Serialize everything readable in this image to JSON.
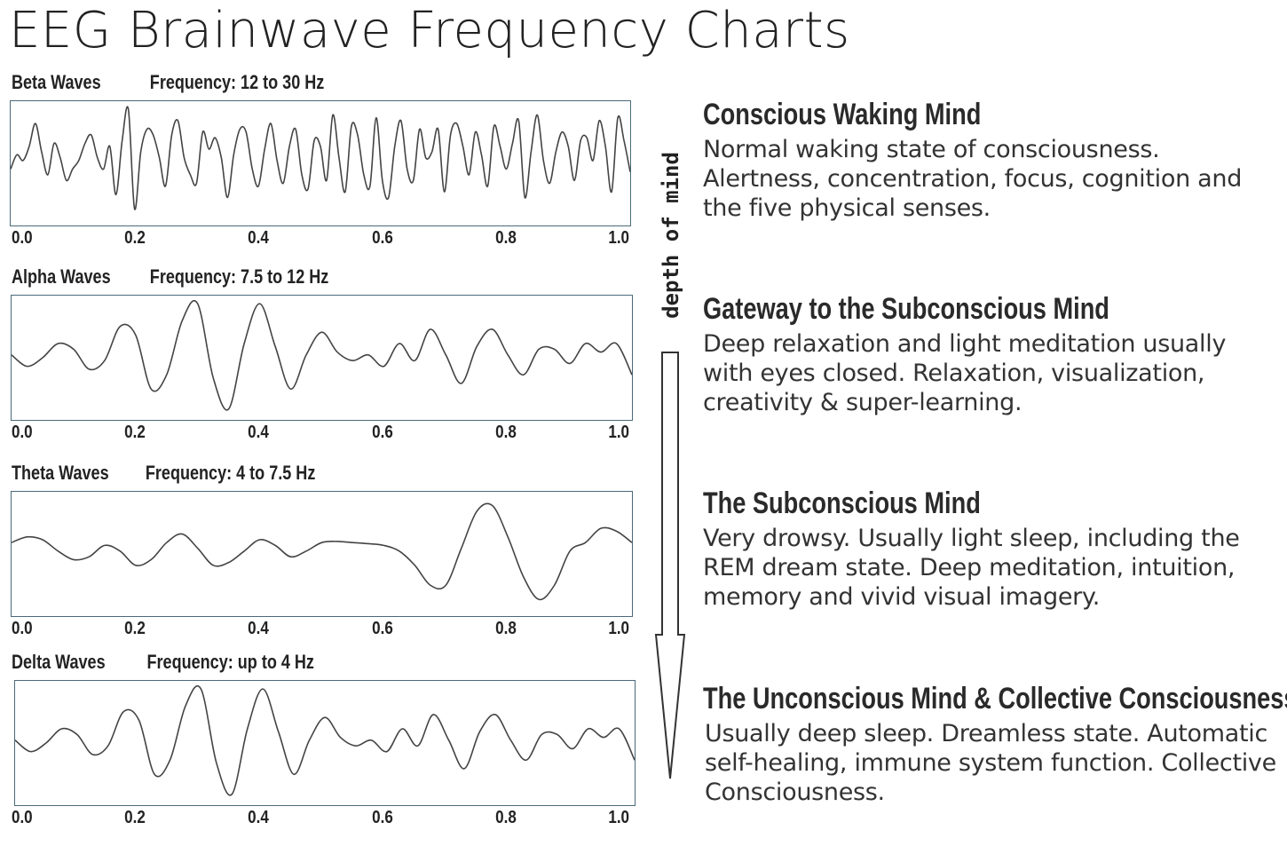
{
  "title": "EEG Brainwave Frequency Charts",
  "depth_label": "depth of mind",
  "chart_data": [
    {
      "type": "line",
      "name": "Beta Waves",
      "frequency_label": "Frequency: 12 to 30 Hz",
      "x_ticks": [
        "0.0",
        "0.2",
        "0.4",
        "0.6",
        "0.8",
        "1.0"
      ],
      "xlim": [
        0,
        1
      ],
      "ylim": [
        -1,
        1
      ],
      "x": [
        0.0,
        0.01,
        0.02,
        0.03,
        0.04,
        0.05,
        0.06,
        0.07,
        0.08,
        0.09,
        0.1,
        0.11,
        0.12,
        0.13,
        0.14,
        0.15,
        0.16,
        0.17,
        0.18,
        0.19,
        0.2,
        0.21,
        0.22,
        0.23,
        0.24,
        0.25,
        0.26,
        0.27,
        0.28,
        0.29,
        0.3,
        0.31,
        0.32,
        0.33,
        0.34,
        0.35,
        0.36,
        0.37,
        0.38,
        0.39,
        0.4,
        0.41,
        0.42,
        0.43,
        0.44,
        0.45,
        0.46,
        0.47,
        0.48,
        0.49,
        0.5,
        0.51,
        0.52,
        0.53,
        0.54,
        0.55,
        0.56,
        0.57,
        0.58,
        0.59,
        0.6,
        0.61,
        0.62,
        0.63,
        0.64,
        0.65,
        0.66,
        0.67,
        0.68,
        0.69,
        0.7,
        0.71,
        0.72,
        0.73,
        0.74,
        0.75,
        0.76,
        0.77,
        0.78,
        0.79,
        0.8,
        0.81,
        0.82,
        0.83,
        0.84,
        0.85,
        0.86,
        0.87,
        0.88,
        0.89,
        0.9,
        0.91,
        0.92,
        0.93,
        0.94,
        0.95,
        0.96,
        0.97,
        0.98,
        0.99,
        1.0
      ],
      "y": [
        -0.1,
        0.15,
        0.05,
        0.3,
        0.7,
        0.2,
        -0.2,
        0.35,
        0.1,
        -0.3,
        -0.1,
        0.05,
        0.35,
        0.5,
        0.1,
        -0.1,
        0.3,
        -0.55,
        0.4,
        0.95,
        -0.8,
        0.2,
        0.6,
        0.5,
        0.1,
        -0.4,
        0.5,
        0.75,
        0.1,
        -0.2,
        -0.35,
        0.55,
        0.25,
        0.45,
        0.1,
        -0.6,
        0.15,
        0.6,
        0.55,
        -0.1,
        -0.4,
        0.25,
        0.7,
        0.05,
        -0.35,
        0.3,
        0.6,
        -0.2,
        -0.45,
        0.4,
        0.3,
        -0.3,
        0.85,
        0.1,
        -0.5,
        0.65,
        0.5,
        -0.2,
        -0.4,
        0.8,
        -0.3,
        -0.6,
        0.3,
        0.75,
        -0.1,
        -0.3,
        0.6,
        0.1,
        0.2,
        0.6,
        -0.5,
        0.5,
        0.7,
        0.3,
        -0.2,
        0.55,
        0.15,
        -0.4,
        0.65,
        0.3,
        -0.1,
        0.35,
        0.75,
        -0.6,
        0.2,
        0.85,
        0.05,
        -0.35,
        0.2,
        0.55,
        0.3,
        -0.3,
        0.4,
        0.45,
        0.05,
        0.75,
        0.3,
        -0.5,
        0.8,
        0.4,
        -0.15
      ]
    },
    {
      "type": "line",
      "name": "Alpha Waves",
      "frequency_label": "Frequency: 7.5 to 12 Hz",
      "x_ticks": [
        "0.0",
        "0.2",
        "0.4",
        "0.6",
        "0.8",
        "1.0"
      ],
      "xlim": [
        0,
        1
      ],
      "ylim": [
        -1,
        1
      ],
      "x": [
        0.0,
        0.025,
        0.05,
        0.075,
        0.1,
        0.125,
        0.15,
        0.175,
        0.2,
        0.225,
        0.25,
        0.275,
        0.3,
        0.325,
        0.35,
        0.375,
        0.4,
        0.425,
        0.45,
        0.475,
        0.5,
        0.525,
        0.55,
        0.575,
        0.6,
        0.625,
        0.65,
        0.675,
        0.7,
        0.725,
        0.75,
        0.775,
        0.8,
        0.825,
        0.85,
        0.875,
        0.9,
        0.925,
        0.95,
        0.975,
        1.0
      ],
      "y": [
        0.05,
        -0.15,
        0.0,
        0.25,
        0.15,
        -0.2,
        -0.05,
        0.55,
        0.4,
        -0.55,
        -0.3,
        0.65,
        0.95,
        -0.35,
        -0.9,
        0.25,
        0.95,
        0.2,
        -0.55,
        0.05,
        0.45,
        0.1,
        -0.05,
        0.05,
        -0.15,
        0.25,
        -0.05,
        0.5,
        0.05,
        -0.45,
        0.2,
        0.5,
        0.05,
        -0.3,
        0.15,
        0.15,
        -0.1,
        0.25,
        0.1,
        0.25,
        -0.3
      ]
    },
    {
      "type": "line",
      "name": "Theta Waves",
      "frequency_label": "Frequency: 4 to 7.5 Hz",
      "x_ticks": [
        "0.0",
        "0.2",
        "0.4",
        "0.6",
        "0.8",
        "1.0"
      ],
      "xlim": [
        0,
        1
      ],
      "ylim": [
        -1,
        1
      ],
      "x": [
        0.0,
        0.025,
        0.05,
        0.075,
        0.1,
        0.125,
        0.15,
        0.175,
        0.2,
        0.225,
        0.25,
        0.275,
        0.3,
        0.325,
        0.35,
        0.375,
        0.4,
        0.425,
        0.45,
        0.475,
        0.5,
        0.525,
        0.55,
        0.575,
        0.6,
        0.625,
        0.65,
        0.675,
        0.7,
        0.725,
        0.75,
        0.775,
        0.8,
        0.825,
        0.85,
        0.875,
        0.9,
        0.925,
        0.95,
        0.975,
        1.0
      ],
      "y": [
        0.2,
        0.3,
        0.25,
        0.05,
        -0.1,
        -0.05,
        0.15,
        0.05,
        -0.2,
        -0.1,
        0.2,
        0.35,
        0.1,
        -0.2,
        -0.15,
        0.05,
        0.25,
        0.15,
        -0.05,
        0.05,
        0.2,
        0.22,
        0.2,
        0.18,
        0.15,
        0.05,
        -0.2,
        -0.55,
        -0.55,
        0.1,
        0.75,
        0.85,
        0.3,
        -0.4,
        -0.8,
        -0.55,
        0.05,
        0.2,
        0.45,
        0.4,
        0.2
      ]
    },
    {
      "type": "line",
      "name": "Delta Waves",
      "frequency_label": "Frequency: up to 4 Hz",
      "x_ticks": [
        "0.0",
        "0.2",
        "0.4",
        "0.6",
        "0.8",
        "1.0"
      ],
      "xlim": [
        0,
        1
      ],
      "ylim": [
        -1,
        1
      ],
      "x": [
        0.0,
        0.025,
        0.05,
        0.075,
        0.1,
        0.125,
        0.15,
        0.175,
        0.2,
        0.225,
        0.25,
        0.275,
        0.3,
        0.325,
        0.35,
        0.375,
        0.4,
        0.425,
        0.45,
        0.475,
        0.5,
        0.525,
        0.55,
        0.575,
        0.6,
        0.625,
        0.65,
        0.675,
        0.7,
        0.725,
        0.75,
        0.775,
        0.8,
        0.825,
        0.85,
        0.875,
        0.9,
        0.925,
        0.95,
        0.975,
        1.0
      ],
      "y": [
        0.05,
        -0.15,
        0.0,
        0.25,
        0.15,
        -0.2,
        -0.05,
        0.55,
        0.4,
        -0.55,
        -0.3,
        0.65,
        0.95,
        -0.35,
        -0.9,
        0.25,
        0.95,
        0.2,
        -0.55,
        0.05,
        0.45,
        0.1,
        -0.05,
        0.05,
        -0.15,
        0.25,
        -0.05,
        0.5,
        0.05,
        -0.45,
        0.2,
        0.5,
        0.05,
        -0.3,
        0.15,
        0.15,
        -0.1,
        0.25,
        0.1,
        0.25,
        -0.3
      ]
    }
  ],
  "descriptions": [
    {
      "title": "Conscious Waking Mind",
      "body": "Normal waking state of consciousness. Alertness, concentration, focus, cognition and the five physical senses."
    },
    {
      "title": "Gateway to the Subconscious Mind",
      "body": "Deep relaxation and light meditation usually with eyes closed. Relaxation, visualization, creativity & super-learning."
    },
    {
      "title": "The Subconscious Mind",
      "body": "Very drowsy. Usually light sleep, including the REM dream state. Deep meditation, intuition, memory and vivid visual imagery."
    },
    {
      "title": "The Unconscious Mind & Collective Consciousness",
      "body": "Usually deep sleep. Dreamless state. Automatic self-healing, immune system function. Collective Consciousness."
    }
  ]
}
